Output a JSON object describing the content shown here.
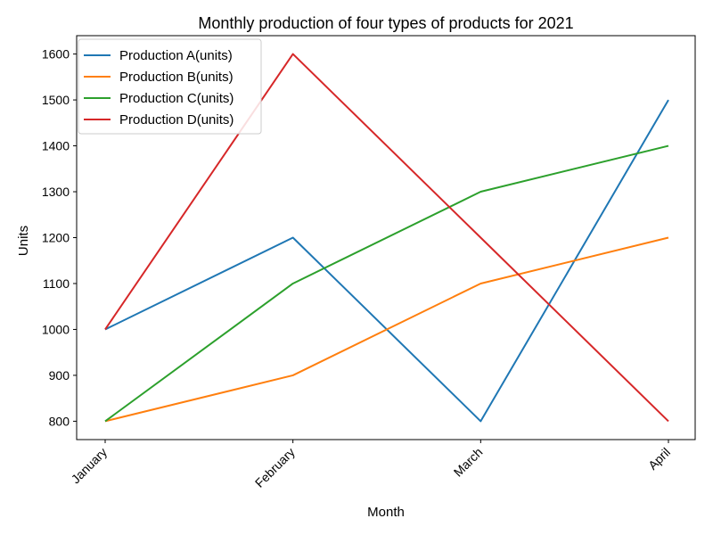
{
  "chart_data": {
    "type": "line",
    "title": "Monthly production of four types of products for 2021",
    "xlabel": "Month",
    "ylabel": "Units",
    "categories": [
      "January",
      "February",
      "March",
      "April"
    ],
    "ylim": [
      760,
      1640
    ],
    "yticks": [
      800,
      900,
      1000,
      1100,
      1200,
      1300,
      1400,
      1500,
      1600
    ],
    "grid": false,
    "legend_position": "top-left",
    "series": [
      {
        "name": "Production A(units)",
        "color": "#1f77b4",
        "values": [
          1000,
          1200,
          800,
          1500
        ]
      },
      {
        "name": "Production B(units)",
        "color": "#ff7f0e",
        "values": [
          800,
          900,
          1100,
          1200
        ]
      },
      {
        "name": "Production C(units)",
        "color": "#2ca02c",
        "values": [
          800,
          1100,
          1300,
          1400
        ]
      },
      {
        "name": "Production D(units)",
        "color": "#d62728",
        "values": [
          1000,
          1600,
          1200,
          800
        ]
      }
    ]
  }
}
